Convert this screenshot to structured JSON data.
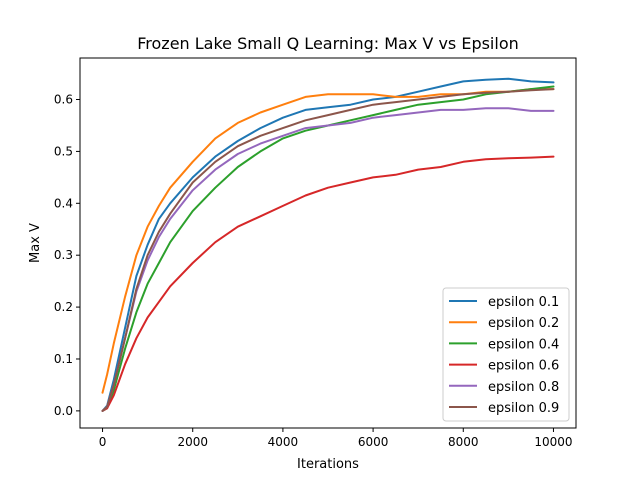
{
  "chart_data": {
    "type": "line",
    "title": "Frozen Lake Small Q Learning: Max V vs Epsilon",
    "xlabel": "Iterations",
    "ylabel": "Max V",
    "xlim": [
      -500,
      10500
    ],
    "ylim": [
      -0.033,
      0.68
    ],
    "xticks": [
      0,
      2000,
      4000,
      6000,
      8000,
      10000
    ],
    "xtick_labels": [
      "0",
      "2000",
      "4000",
      "6000",
      "8000",
      "10000"
    ],
    "yticks": [
      0.0,
      0.1,
      0.2,
      0.3,
      0.4,
      0.5,
      0.6
    ],
    "ytick_labels": [
      "0.0",
      "0.1",
      "0.2",
      "0.3",
      "0.4",
      "0.5",
      "0.6"
    ],
    "grid": false,
    "legend_position": "lower right",
    "x": [
      0,
      100,
      250,
      500,
      750,
      1000,
      1250,
      1500,
      2000,
      2500,
      3000,
      3500,
      4000,
      4500,
      5000,
      5500,
      6000,
      6500,
      7000,
      7500,
      8000,
      8500,
      9000,
      9500,
      10000
    ],
    "series": [
      {
        "name": "epsilon 0.1",
        "color": "#1f77b4",
        "values": [
          0.0,
          0.01,
          0.06,
          0.16,
          0.26,
          0.32,
          0.37,
          0.4,
          0.45,
          0.49,
          0.52,
          0.545,
          0.565,
          0.58,
          0.585,
          0.59,
          0.6,
          0.605,
          0.615,
          0.625,
          0.635,
          0.638,
          0.64,
          0.635,
          0.633
        ]
      },
      {
        "name": "epsilon 0.2",
        "color": "#ff7f0e",
        "values": [
          0.035,
          0.07,
          0.13,
          0.22,
          0.3,
          0.355,
          0.395,
          0.43,
          0.48,
          0.525,
          0.555,
          0.575,
          0.59,
          0.605,
          0.61,
          0.61,
          0.61,
          0.605,
          0.605,
          0.61,
          0.61,
          0.615,
          0.615,
          0.62,
          0.62
        ]
      },
      {
        "name": "epsilon 0.4",
        "color": "#2ca02c",
        "values": [
          0.0,
          0.005,
          0.04,
          0.12,
          0.19,
          0.245,
          0.285,
          0.325,
          0.385,
          0.43,
          0.47,
          0.5,
          0.525,
          0.54,
          0.55,
          0.56,
          0.57,
          0.58,
          0.59,
          0.595,
          0.6,
          0.61,
          0.615,
          0.62,
          0.625
        ]
      },
      {
        "name": "epsilon 0.6",
        "color": "#d62728",
        "values": [
          0.0,
          0.005,
          0.03,
          0.09,
          0.14,
          0.18,
          0.21,
          0.24,
          0.285,
          0.325,
          0.355,
          0.375,
          0.395,
          0.415,
          0.43,
          0.44,
          0.45,
          0.455,
          0.465,
          0.47,
          0.48,
          0.485,
          0.487,
          0.488,
          0.49
        ]
      },
      {
        "name": "epsilon 0.8",
        "color": "#9467bd",
        "values": [
          0.0,
          0.008,
          0.05,
          0.14,
          0.23,
          0.29,
          0.335,
          0.37,
          0.425,
          0.465,
          0.495,
          0.515,
          0.53,
          0.545,
          0.55,
          0.555,
          0.565,
          0.57,
          0.575,
          0.58,
          0.58,
          0.583,
          0.583,
          0.578,
          0.578
        ]
      },
      {
        "name": "epsilon 0.9",
        "color": "#8c564b",
        "values": [
          0.0,
          0.008,
          0.05,
          0.14,
          0.235,
          0.3,
          0.345,
          0.38,
          0.44,
          0.48,
          0.51,
          0.53,
          0.545,
          0.56,
          0.57,
          0.58,
          0.59,
          0.595,
          0.6,
          0.605,
          0.61,
          0.613,
          0.615,
          0.618,
          0.62
        ]
      }
    ]
  }
}
